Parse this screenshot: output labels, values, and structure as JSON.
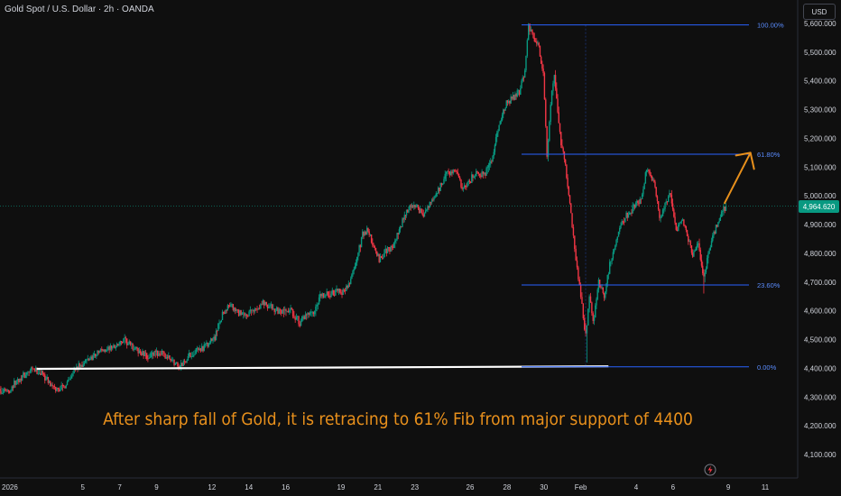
{
  "header": {
    "title": "Gold Spot / U.S. Dollar · 2h · OANDA",
    "currency_button": "USD"
  },
  "annotation": "After sharp fall of Gold, it is retracing to 61% Fib from major support of 4400",
  "icons": {
    "flash": "lightning-icon",
    "trend_arrow": "arrow-up-right-icon"
  },
  "colors": {
    "up": "#089981",
    "down": "#f23645",
    "fib": "#2962ff",
    "annotation": "#e8901c",
    "support": "#ffffff",
    "price_tag": "#089981"
  },
  "chart_data": {
    "type": "candlestick",
    "symbol": "Gold Spot / U.S. Dollar",
    "interval": "2h",
    "source": "OANDA",
    "ylim": [
      4050,
      5640
    ],
    "y_ticks": [
      {
        "value": 4100,
        "label": "4,100.000"
      },
      {
        "value": 4200,
        "label": "4,200.000"
      },
      {
        "value": 4300,
        "label": "4,300.000"
      },
      {
        "value": 4400,
        "label": "4,400.000"
      },
      {
        "value": 4500,
        "label": "4,500.000"
      },
      {
        "value": 4600,
        "label": "4,600.000"
      },
      {
        "value": 4700,
        "label": "4,700.000"
      },
      {
        "value": 4800,
        "label": "4,800.000"
      },
      {
        "value": 4900,
        "label": "4,900.000"
      },
      {
        "value": 5000,
        "label": "5,000.000"
      },
      {
        "value": 5100,
        "label": "5,100.000"
      },
      {
        "value": 5200,
        "label": "5,200.000"
      },
      {
        "value": 5300,
        "label": "5,300.000"
      },
      {
        "value": 5400,
        "label": "5,400.000"
      },
      {
        "value": 5500,
        "label": "5,500.000"
      },
      {
        "value": 5600,
        "label": "5,600.000"
      }
    ],
    "x_ticks": [
      {
        "label": "2026",
        "day": 1
      },
      {
        "label": "5",
        "day": 5
      },
      {
        "label": "7",
        "day": 7
      },
      {
        "label": "9",
        "day": 9
      },
      {
        "label": "12",
        "day": 12
      },
      {
        "label": "14",
        "day": 14
      },
      {
        "label": "16",
        "day": 16
      },
      {
        "label": "19",
        "day": 19
      },
      {
        "label": "21",
        "day": 21
      },
      {
        "label": "23",
        "day": 23
      },
      {
        "label": "26",
        "day": 26
      },
      {
        "label": "28",
        "day": 28
      },
      {
        "label": "30",
        "day": 30
      },
      {
        "label": "Feb",
        "day": 32
      },
      {
        "label": "4",
        "day": 35
      },
      {
        "label": "6",
        "day": 37
      },
      {
        "label": "9",
        "day": 40
      },
      {
        "label": "11",
        "day": 42
      }
    ],
    "current_price": 4964.62,
    "current_price_label": "4,964.620",
    "fib_levels": [
      {
        "label": "100.00%",
        "value": 5595
      },
      {
        "label": "61.80%",
        "value": 5145
      },
      {
        "label": "23.60%",
        "value": 4690
      },
      {
        "label": "0.00%",
        "value": 4405
      }
    ],
    "support_line": {
      "from": {
        "day": 2.5,
        "price": 4398
      },
      "to": {
        "day": 33.5,
        "price": 4407
      }
    },
    "arrow": {
      "from": {
        "day": 39.8,
        "price": 4975
      },
      "to": {
        "day": 41.2,
        "price": 5150
      }
    },
    "path": [
      [
        0.0,
        4330
      ],
      [
        1.0,
        4320
      ],
      [
        1.5,
        4360
      ],
      [
        2.3,
        4395
      ],
      [
        2.8,
        4385
      ],
      [
        3.5,
        4325
      ],
      [
        4.0,
        4335
      ],
      [
        4.5,
        4390
      ],
      [
        5.3,
        4430
      ],
      [
        6.0,
        4460
      ],
      [
        6.7,
        4475
      ],
      [
        7.3,
        4495
      ],
      [
        7.8,
        4470
      ],
      [
        8.5,
        4440
      ],
      [
        9.2,
        4455
      ],
      [
        9.8,
        4430
      ],
      [
        10.3,
        4405
      ],
      [
        10.8,
        4445
      ],
      [
        11.3,
        4465
      ],
      [
        11.8,
        4480
      ],
      [
        12.2,
        4510
      ],
      [
        12.6,
        4590
      ],
      [
        13.0,
        4620
      ],
      [
        13.3,
        4600
      ],
      [
        13.8,
        4580
      ],
      [
        14.3,
        4600
      ],
      [
        14.8,
        4630
      ],
      [
        15.3,
        4610
      ],
      [
        15.8,
        4590
      ],
      [
        16.3,
        4600
      ],
      [
        16.8,
        4560
      ],
      [
        17.1,
        4580
      ],
      [
        17.6,
        4590
      ],
      [
        17.9,
        4650
      ],
      [
        18.5,
        4660
      ],
      [
        19.2,
        4670
      ],
      [
        19.5,
        4700
      ],
      [
        19.9,
        4780
      ],
      [
        20.2,
        4870
      ],
      [
        20.5,
        4880
      ],
      [
        20.8,
        4820
      ],
      [
        21.1,
        4780
      ],
      [
        21.5,
        4810
      ],
      [
        21.9,
        4830
      ],
      [
        22.3,
        4900
      ],
      [
        22.7,
        4960
      ],
      [
        23.1,
        4960
      ],
      [
        23.5,
        4935
      ],
      [
        23.9,
        4975
      ],
      [
        24.3,
        5020
      ],
      [
        24.8,
        5080
      ],
      [
        25.3,
        5090
      ],
      [
        25.6,
        5020
      ],
      [
        26.0,
        5050
      ],
      [
        26.3,
        5080
      ],
      [
        26.8,
        5070
      ],
      [
        27.2,
        5120
      ],
      [
        27.6,
        5250
      ],
      [
        28.0,
        5320
      ],
      [
        28.3,
        5340
      ],
      [
        28.7,
        5360
      ],
      [
        29.0,
        5440
      ],
      [
        29.2,
        5590
      ],
      [
        29.4,
        5560
      ],
      [
        29.7,
        5530
      ],
      [
        30.0,
        5430
      ],
      [
        30.2,
        5130
      ],
      [
        30.4,
        5320
      ],
      [
        30.6,
        5430
      ],
      [
        30.9,
        5210
      ],
      [
        31.2,
        5100
      ],
      [
        31.5,
        4930
      ],
      [
        31.7,
        4820
      ],
      [
        31.9,
        4720
      ],
      [
        32.1,
        4620
      ],
      [
        32.3,
        4510
      ],
      [
        32.5,
        4650
      ],
      [
        32.7,
        4560
      ],
      [
        33.0,
        4700
      ],
      [
        33.3,
        4650
      ],
      [
        33.6,
        4760
      ],
      [
        33.9,
        4830
      ],
      [
        34.2,
        4900
      ],
      [
        34.5,
        4930
      ],
      [
        34.9,
        4960
      ],
      [
        35.3,
        4990
      ],
      [
        35.6,
        5090
      ],
      [
        36.0,
        5050
      ],
      [
        36.3,
        4920
      ],
      [
        36.6,
        4970
      ],
      [
        36.9,
        5010
      ],
      [
        37.2,
        4880
      ],
      [
        37.5,
        4920
      ],
      [
        37.8,
        4860
      ],
      [
        38.1,
        4800
      ],
      [
        38.4,
        4840
      ],
      [
        38.7,
        4710
      ],
      [
        39.0,
        4820
      ],
      [
        39.3,
        4880
      ],
      [
        39.6,
        4930
      ],
      [
        39.9,
        4964.62
      ]
    ]
  }
}
